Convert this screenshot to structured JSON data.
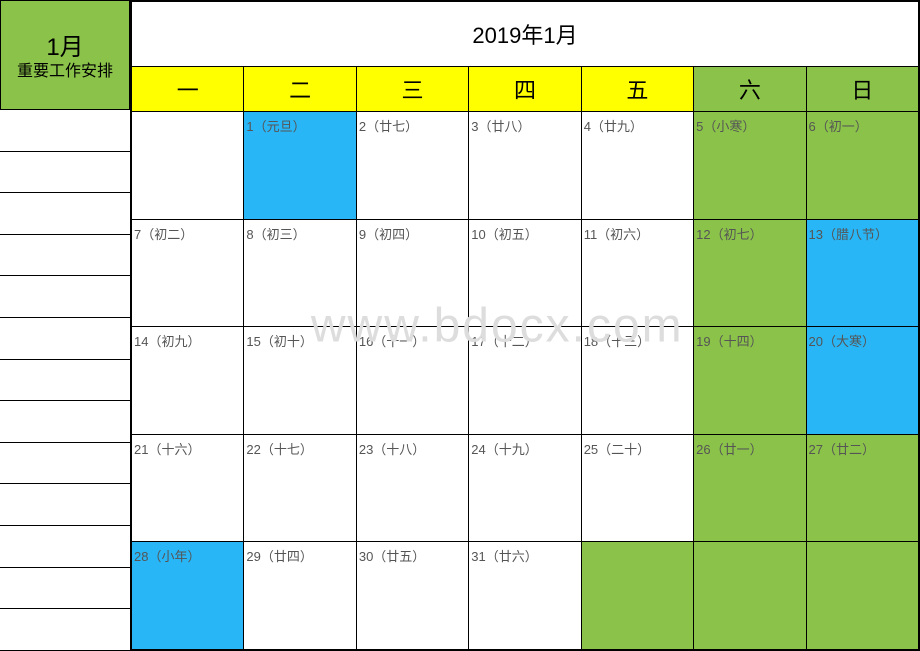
{
  "sidebar": {
    "month": "1月",
    "subtitle": "重要工作安排",
    "line_count": 13
  },
  "calendar": {
    "title": "2019年1月",
    "headers": [
      {
        "label": "一",
        "type": "weekday"
      },
      {
        "label": "二",
        "type": "weekday"
      },
      {
        "label": "三",
        "type": "weekday"
      },
      {
        "label": "四",
        "type": "weekday"
      },
      {
        "label": "五",
        "type": "weekday"
      },
      {
        "label": "六",
        "type": "weekend"
      },
      {
        "label": "日",
        "type": "weekend"
      }
    ],
    "colors": {
      "weekday_header": "#ffff00",
      "weekend_header": "#8bc34a",
      "sidebar_bg": "#8bc34a",
      "highlight_blue": "#29b6f6",
      "highlight_green": "#8bc34a",
      "normal_bg": "#ffffff",
      "border": "#000000",
      "text": "#555555",
      "watermark": "#dddddd"
    },
    "weeks": [
      [
        {
          "label": "",
          "bg": "white"
        },
        {
          "label": "1（元旦）",
          "bg": "blue"
        },
        {
          "label": "2（廿七）",
          "bg": "white"
        },
        {
          "label": "3（廿八）",
          "bg": "white"
        },
        {
          "label": "4（廿九）",
          "bg": "white"
        },
        {
          "label": "5（小寒）",
          "bg": "green"
        },
        {
          "label": "6（初一）",
          "bg": "green"
        }
      ],
      [
        {
          "label": "7（初二）",
          "bg": "white"
        },
        {
          "label": "8（初三）",
          "bg": "white"
        },
        {
          "label": "9（初四）",
          "bg": "white"
        },
        {
          "label": "10（初五）",
          "bg": "white"
        },
        {
          "label": "11（初六）",
          "bg": "white"
        },
        {
          "label": "12（初七）",
          "bg": "green"
        },
        {
          "label": "13（腊八节）",
          "bg": "blue"
        }
      ],
      [
        {
          "label": "14（初九）",
          "bg": "white"
        },
        {
          "label": "15（初十）",
          "bg": "white"
        },
        {
          "label": "16（十一）",
          "bg": "white"
        },
        {
          "label": "17（十二）",
          "bg": "white"
        },
        {
          "label": "18（十三）",
          "bg": "white"
        },
        {
          "label": "19（十四）",
          "bg": "green"
        },
        {
          "label": "20（大寒）",
          "bg": "blue"
        }
      ],
      [
        {
          "label": "21（十六）",
          "bg": "white"
        },
        {
          "label": "22（十七）",
          "bg": "white"
        },
        {
          "label": "23（十八）",
          "bg": "white"
        },
        {
          "label": "24（十九）",
          "bg": "white"
        },
        {
          "label": "25（二十）",
          "bg": "white"
        },
        {
          "label": "26（廿一）",
          "bg": "green"
        },
        {
          "label": "27（廿二）",
          "bg": "green"
        }
      ],
      [
        {
          "label": "28（小年）",
          "bg": "blue"
        },
        {
          "label": "29（廿四）",
          "bg": "white"
        },
        {
          "label": "30（廿五）",
          "bg": "white"
        },
        {
          "label": "31（廿六）",
          "bg": "white"
        },
        {
          "label": "",
          "bg": "green"
        },
        {
          "label": "",
          "bg": "green"
        },
        {
          "label": "",
          "bg": "green"
        }
      ]
    ]
  },
  "watermark": "www.bdocx.com"
}
